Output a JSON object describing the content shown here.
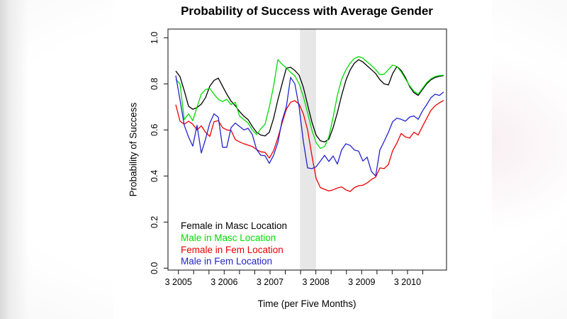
{
  "chart_data": {
    "type": "line",
    "title": "Probability of Success with Average Gender",
    "xlabel": "Time (per Five Months)",
    "ylabel": "Probability of Success",
    "ylim": [
      0.0,
      1.0
    ],
    "ytick_labels": [
      "0.0",
      "0.2",
      "0.4",
      "0.6",
      "0.8",
      "1.0"
    ],
    "xtick_labels": [
      "3 2005",
      "3 2006",
      "3 2007",
      "3 2008",
      "3 2009",
      "3 2010"
    ],
    "minor_xticks_between_labels": 3,
    "total_xticks": 17,
    "grid": "off",
    "legend_position": "bottom-left-inside",
    "highlight_band": {
      "description": "vertical gray band before 3 2008",
      "color": "#e7e7e7",
      "from_x_index": 29.2,
      "to_x_index": 33.0
    },
    "x_description": "64 evenly spaced five-month periods from early 2005 to late 2010",
    "series": [
      {
        "name": "Female in Masc Location",
        "color": "#000000",
        "values": [
          0.856,
          0.831,
          0.77,
          0.703,
          0.69,
          0.697,
          0.712,
          0.74,
          0.79,
          0.815,
          0.825,
          0.79,
          0.755,
          0.725,
          0.705,
          0.68,
          0.66,
          0.645,
          0.615,
          0.59,
          0.578,
          0.574,
          0.59,
          0.65,
          0.73,
          0.8,
          0.868,
          0.872,
          0.858,
          0.838,
          0.785,
          0.71,
          0.635,
          0.578,
          0.553,
          0.548,
          0.56,
          0.61,
          0.675,
          0.75,
          0.815,
          0.86,
          0.89,
          0.905,
          0.895,
          0.878,
          0.862,
          0.845,
          0.818,
          0.8,
          0.795,
          0.845,
          0.875,
          0.858,
          0.828,
          0.788,
          0.762,
          0.75,
          0.775,
          0.8,
          0.818,
          0.828,
          0.833,
          0.836
        ]
      },
      {
        "name": "Male in Masc Location",
        "color": "#00dd00",
        "values": [
          0.82,
          0.8,
          0.645,
          0.67,
          0.64,
          0.7,
          0.755,
          0.775,
          0.78,
          0.755,
          0.733,
          0.723,
          0.733,
          0.71,
          0.72,
          0.66,
          0.645,
          0.63,
          0.6,
          0.58,
          0.605,
          0.625,
          0.7,
          0.79,
          0.905,
          0.885,
          0.87,
          0.85,
          0.835,
          0.8,
          0.745,
          0.675,
          0.6,
          0.545,
          0.52,
          0.528,
          0.57,
          0.655,
          0.75,
          0.82,
          0.86,
          0.89,
          0.91,
          0.918,
          0.912,
          0.895,
          0.88,
          0.862,
          0.84,
          0.842,
          0.862,
          0.882,
          0.875,
          0.852,
          0.822,
          0.792,
          0.768,
          0.755,
          0.78,
          0.805,
          0.822,
          0.832,
          0.836,
          0.838
        ]
      },
      {
        "name": "Female in Fem Location",
        "color": "#ee0000",
        "values": [
          0.71,
          0.638,
          0.625,
          0.638,
          0.625,
          0.6,
          0.618,
          0.59,
          0.572,
          0.636,
          0.64,
          0.61,
          0.6,
          0.598,
          0.558,
          0.548,
          0.54,
          0.534,
          0.528,
          0.515,
          0.505,
          0.503,
          0.478,
          0.51,
          0.565,
          0.63,
          0.69,
          0.72,
          0.727,
          0.712,
          0.67,
          0.6,
          0.49,
          0.39,
          0.35,
          0.342,
          0.335,
          0.34,
          0.348,
          0.353,
          0.34,
          0.333,
          0.35,
          0.358,
          0.36,
          0.37,
          0.385,
          0.395,
          0.435,
          0.432,
          0.45,
          0.51,
          0.543,
          0.585,
          0.57,
          0.565,
          0.59,
          0.578,
          0.615,
          0.65,
          0.685,
          0.705,
          0.718,
          0.728
        ]
      },
      {
        "name": "Male in Fem Location",
        "color": "#2222cc",
        "values": [
          0.836,
          0.73,
          0.62,
          0.57,
          0.53,
          0.62,
          0.5,
          0.56,
          0.63,
          0.67,
          0.655,
          0.525,
          0.525,
          0.61,
          0.63,
          0.615,
          0.6,
          0.607,
          0.58,
          0.515,
          0.49,
          0.488,
          0.455,
          0.49,
          0.545,
          0.64,
          0.7,
          0.828,
          0.8,
          0.7,
          0.55,
          0.435,
          0.432,
          0.44,
          0.465,
          0.49,
          0.463,
          0.487,
          0.452,
          0.513,
          0.54,
          0.533,
          0.513,
          0.508,
          0.465,
          0.482,
          0.42,
          0.4,
          0.513,
          0.55,
          0.59,
          0.636,
          0.651,
          0.646,
          0.638,
          0.656,
          0.661,
          0.646,
          0.682,
          0.71,
          0.74,
          0.755,
          0.75,
          0.765
        ]
      }
    ]
  }
}
